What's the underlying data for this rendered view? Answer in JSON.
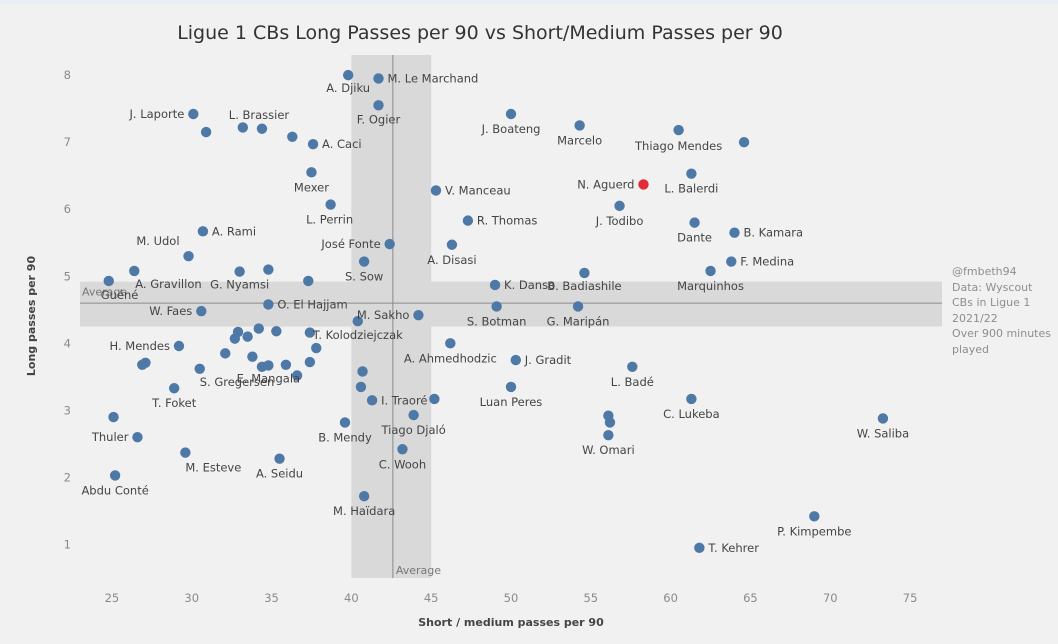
{
  "chart_data": {
    "type": "scatter",
    "title": "Ligue 1 CBs Long Passes per 90 vs Short/Medium Passes per 90",
    "xlabel": "Short / medium passes per 90",
    "ylabel": "Long passes per 90",
    "xlim": [
      23,
      77
    ],
    "ylim": [
      0.5,
      8.3
    ],
    "x_ticks": [
      25,
      30,
      35,
      40,
      45,
      50,
      55,
      60,
      65,
      70,
      75
    ],
    "y_ticks": [
      1,
      2,
      3,
      4,
      5,
      6,
      7,
      8
    ],
    "grid": false,
    "point_color": "#4e79a7",
    "highlight_color": "#e12d39",
    "x_average": 42.6,
    "x_band": [
      40,
      45
    ],
    "y_average": 4.6,
    "y_band": [
      4.25,
      4.92
    ],
    "average_label": "Average",
    "points": [
      {
        "name": "A. Djiku",
        "x": 39.8,
        "y": 8.0
      },
      {
        "name": "M. Le Marchand",
        "x": 41.7,
        "y": 7.95
      },
      {
        "name": "F. Ogier",
        "x": 41.7,
        "y": 7.55
      },
      {
        "name": "J. Laporte",
        "x": 30.1,
        "y": 7.42
      },
      {
        "name": "L. Brassier",
        "x": 34.4,
        "y": 7.2
      },
      {
        "name": "A. Caci",
        "x": 37.6,
        "y": 6.97
      },
      {
        "name": "Mexer",
        "x": 37.5,
        "y": 6.55
      },
      {
        "name": "L. Perrin",
        "x": 38.7,
        "y": 6.07
      },
      {
        "name": "V. Manceau",
        "x": 45.3,
        "y": 6.28
      },
      {
        "name": "J. Boateng",
        "x": 50.0,
        "y": 7.42
      },
      {
        "name": "Marcelo",
        "x": 54.3,
        "y": 7.25
      },
      {
        "name": "Thiago Mendes",
        "x": 60.5,
        "y": 7.18
      },
      {
        "name": "N. Aguerd",
        "x": 58.3,
        "y": 6.37,
        "highlight": true
      },
      {
        "name": "L. Balerdi",
        "x": 61.3,
        "y": 6.53
      },
      {
        "name": "J. Todibo",
        "x": 56.8,
        "y": 6.05
      },
      {
        "name": "R. Thomas",
        "x": 47.3,
        "y": 5.83
      },
      {
        "name": "A. Rami",
        "x": 30.7,
        "y": 5.67
      },
      {
        "name": "José Fonte",
        "x": 42.4,
        "y": 5.48
      },
      {
        "name": "A. Disasi",
        "x": 46.3,
        "y": 5.47
      },
      {
        "name": "M. Udol",
        "x": 29.8,
        "y": 5.3
      },
      {
        "name": "Dante",
        "x": 61.5,
        "y": 5.8
      },
      {
        "name": "B. Kamara",
        "x": 64.0,
        "y": 5.65
      },
      {
        "name": "F. Medina",
        "x": 63.8,
        "y": 5.22
      },
      {
        "name": "Marquinhos",
        "x": 62.5,
        "y": 5.08
      },
      {
        "name": "S. Sow",
        "x": 40.8,
        "y": 5.22
      },
      {
        "name": "A. Gravillon",
        "x": 26.4,
        "y": 5.08
      },
      {
        "name": "G. Nyamsi",
        "x": 33.0,
        "y": 5.07
      },
      {
        "name": "K. Danso",
        "x": 49.0,
        "y": 4.87
      },
      {
        "name": "B. Badiashile",
        "x": 54.6,
        "y": 5.05
      },
      {
        "name": "Guéné",
        "x": 24.8,
        "y": 4.93
      },
      {
        "name": "O. El Hajjam",
        "x": 34.8,
        "y": 4.58
      },
      {
        "name": "W. Faes",
        "x": 30.6,
        "y": 4.48
      },
      {
        "name": "M. Sakho",
        "x": 44.2,
        "y": 4.42
      },
      {
        "name": "S. Botman",
        "x": 49.1,
        "y": 4.55
      },
      {
        "name": "G. Maripán",
        "x": 54.2,
        "y": 4.55
      },
      {
        "name": "T. Kolodziejczak",
        "x": 40.4,
        "y": 4.33
      },
      {
        "name": "H. Mendes",
        "x": 29.2,
        "y": 3.96
      },
      {
        "name": "A. Ahmedhodzic",
        "x": 46.2,
        "y": 4.0
      },
      {
        "name": "J. Gradit",
        "x": 50.3,
        "y": 3.75
      },
      {
        "name": "S. Gregersen",
        "x": 30.5,
        "y": 3.62
      },
      {
        "name": "E. Mangala",
        "x": 34.8,
        "y": 3.67
      },
      {
        "name": "L. Badé",
        "x": 57.6,
        "y": 3.65
      },
      {
        "name": "T. Foket",
        "x": 28.9,
        "y": 3.33
      },
      {
        "name": "I. Traoré",
        "x": 41.3,
        "y": 3.15
      },
      {
        "name": "Luan Peres",
        "x": 50.0,
        "y": 3.35
      },
      {
        "name": "C. Lukeba",
        "x": 61.3,
        "y": 3.17
      },
      {
        "name": "Tiago Djaló",
        "x": 43.9,
        "y": 2.93
      },
      {
        "name": "B. Mendy",
        "x": 39.6,
        "y": 2.82
      },
      {
        "name": "W. Omari",
        "x": 56.1,
        "y": 2.63
      },
      {
        "name": "W. Saliba",
        "x": 73.3,
        "y": 2.88
      },
      {
        "name": "C. Wooh",
        "x": 43.2,
        "y": 2.42
      },
      {
        "name": "Thuler",
        "x": 26.6,
        "y": 2.6
      },
      {
        "name": "M. Esteve",
        "x": 29.6,
        "y": 2.37
      },
      {
        "name": "A. Seidu",
        "x": 35.5,
        "y": 2.28
      },
      {
        "name": "Abdu Conté",
        "x": 25.2,
        "y": 2.03
      },
      {
        "name": "M. Haïdara",
        "x": 40.8,
        "y": 1.72
      },
      {
        "name": "P. Kimpembe",
        "x": 69.0,
        "y": 1.42
      },
      {
        "name": "T. Kehrer",
        "x": 61.8,
        "y": 0.95
      },
      {
        "name": "",
        "x": 30.9,
        "y": 7.15
      },
      {
        "name": "",
        "x": 33.2,
        "y": 7.22
      },
      {
        "name": "",
        "x": 36.3,
        "y": 7.08
      },
      {
        "name": "",
        "x": 32.9,
        "y": 4.17
      },
      {
        "name": "",
        "x": 33.5,
        "y": 4.1
      },
      {
        "name": "",
        "x": 34.2,
        "y": 4.22
      },
      {
        "name": "",
        "x": 35.3,
        "y": 4.18
      },
      {
        "name": "",
        "x": 32.7,
        "y": 4.07
      },
      {
        "name": "",
        "x": 37.4,
        "y": 4.16
      },
      {
        "name": "",
        "x": 37.8,
        "y": 3.93
      },
      {
        "name": "",
        "x": 32.1,
        "y": 3.85
      },
      {
        "name": "",
        "x": 33.8,
        "y": 3.8
      },
      {
        "name": "",
        "x": 34.4,
        "y": 3.65
      },
      {
        "name": "",
        "x": 36.6,
        "y": 3.52
      },
      {
        "name": "",
        "x": 37.4,
        "y": 3.72
      },
      {
        "name": "",
        "x": 35.9,
        "y": 3.68
      },
      {
        "name": "",
        "x": 27.1,
        "y": 3.71
      },
      {
        "name": "",
        "x": 26.9,
        "y": 3.68
      },
      {
        "name": "",
        "x": 25.1,
        "y": 2.9
      },
      {
        "name": "",
        "x": 37.3,
        "y": 4.93
      },
      {
        "name": "",
        "x": 34.8,
        "y": 5.1
      },
      {
        "name": "",
        "x": 40.7,
        "y": 3.58
      },
      {
        "name": "",
        "x": 40.6,
        "y": 3.35
      },
      {
        "name": "",
        "x": 45.2,
        "y": 3.17
      },
      {
        "name": "",
        "x": 56.1,
        "y": 2.92
      },
      {
        "name": "",
        "x": 56.2,
        "y": 2.82
      },
      {
        "name": "",
        "x": 64.6,
        "y": 7.0
      }
    ]
  },
  "note": {
    "handle": "@fmbeth94",
    "source": "Data: Wyscout CBs in Ligue 1 2021/22",
    "filter": "Over 900 minutes played"
  }
}
